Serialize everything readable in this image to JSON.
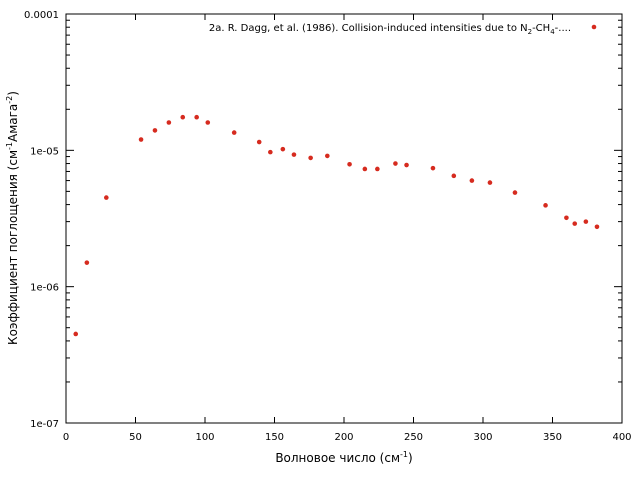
{
  "chart_data": {
    "type": "scatter",
    "title": "",
    "xlabel": "Волновое число (см",
    "xlabel_sup": "-1",
    "xlabel_end": ")",
    "ylabel": "Коэффициент поглощения (см",
    "ylabel_sup1": "-1",
    "ylabel_mid": "Амага",
    "ylabel_sup2": "-2",
    "ylabel_end": ")",
    "xlim": [
      0,
      400
    ],
    "ylim": [
      1e-07,
      0.0001
    ],
    "yscale": "log",
    "x_ticks": [
      "0",
      "50",
      "100",
      "150",
      "200",
      "250",
      "300",
      "350",
      "400"
    ],
    "y_ticks": [
      "1e-07",
      "1e-06",
      "1e-05",
      "0.0001"
    ],
    "grid": false,
    "legend_position": "top-right",
    "series": [
      {
        "name": "2a. R. Dagg, et al. (1986). Collision-induced intensities due to N",
        "name_sub1": "2",
        "name_mid": "-CH",
        "name_sub2": "4",
        "name_end": "-....",
        "color": "#d62b1f",
        "x": [
          7,
          15,
          29,
          54,
          64,
          74,
          84,
          94,
          102,
          121,
          139,
          147,
          156,
          164,
          176,
          188,
          204,
          215,
          224,
          237,
          245,
          264,
          279,
          292,
          305,
          323,
          345,
          360,
          366,
          374,
          382
        ],
        "y": [
          4.5e-07,
          1.5e-06,
          4.5e-06,
          1.2e-05,
          1.4e-05,
          1.6e-05,
          1.75e-05,
          1.75e-05,
          1.6e-05,
          1.35e-05,
          1.15e-05,
          9.7e-06,
          1.02e-05,
          9.3e-06,
          8.8e-06,
          9.1e-06,
          7.9e-06,
          7.3e-06,
          7.3e-06,
          8e-06,
          7.8e-06,
          7.4e-06,
          6.5e-06,
          6e-06,
          5.8e-06,
          4.9e-06,
          3.95e-06,
          3.2e-06,
          2.9e-06,
          3e-06,
          2.75e-06
        ]
      }
    ]
  }
}
